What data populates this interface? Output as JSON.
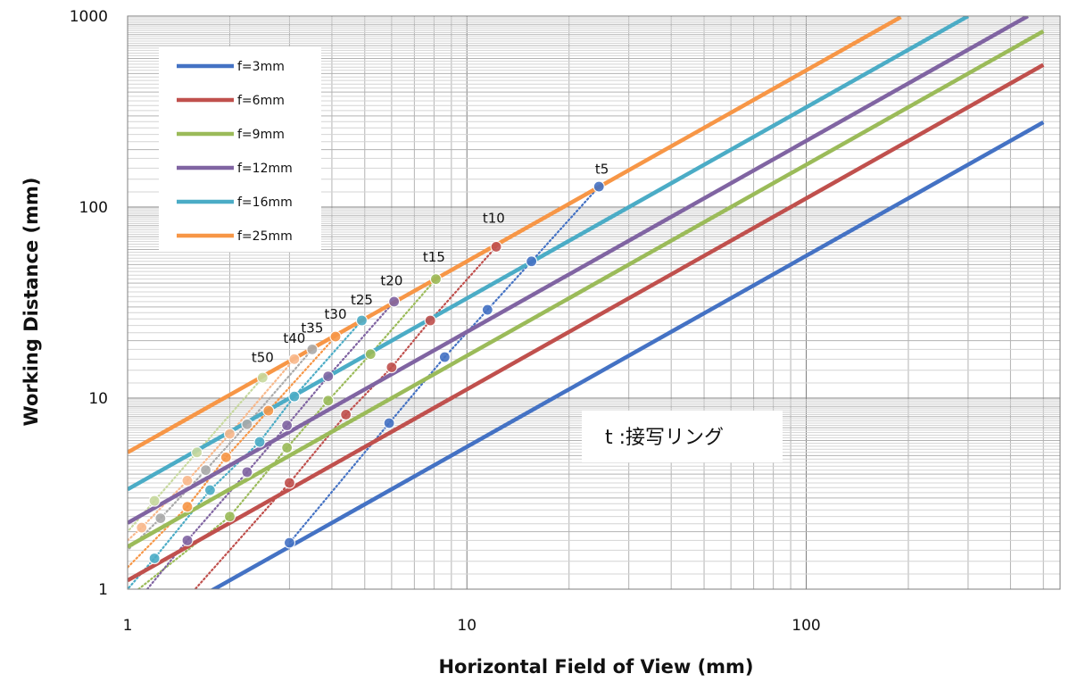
{
  "chart_data": {
    "type": "line",
    "xlabel": "Horizontal Field of View (mm)",
    "ylabel": "Working Distance (mm)",
    "x_scale": "log",
    "y_scale": "log",
    "xlim": [
      1,
      560
    ],
    "ylim": [
      1,
      1000
    ],
    "x_ticks": [
      {
        "value": 1,
        "label": "1"
      },
      {
        "value": 10,
        "label": "10"
      },
      {
        "value": 100,
        "label": "100"
      }
    ],
    "y_ticks": [
      {
        "value": 1,
        "label": "1"
      },
      {
        "value": 10,
        "label": "10"
      },
      {
        "value": 100,
        "label": "100"
      },
      {
        "value": 1000,
        "label": "1000"
      }
    ],
    "grid": true,
    "legend_position": "top-left",
    "series": [
      {
        "name": "f=3mm",
        "color": "#4472c4",
        "slope": 0.556,
        "x_range": [
          1.5,
          500
        ]
      },
      {
        "name": "f=6mm",
        "color": "#c0504d",
        "slope": 1.111,
        "x_range": [
          1,
          500
        ]
      },
      {
        "name": "f=9mm",
        "color": "#9bbb59",
        "slope": 1.667,
        "x_range": [
          1,
          500
        ]
      },
      {
        "name": "f=12mm",
        "color": "#8064a2",
        "slope": 2.222,
        "x_range": [
          1,
          450
        ]
      },
      {
        "name": "f=16mm",
        "color": "#4bacc6",
        "slope": 3.33,
        "x_range": [
          1,
          300
        ]
      },
      {
        "name": "f=25mm",
        "color": "#f79646",
        "slope": 5.2,
        "x_range": [
          1,
          190
        ]
      }
    ],
    "extension_rings": [
      {
        "label": "t5",
        "color": "#4472c4",
        "label_x": 25,
        "label_y": 150,
        "points": [
          [
            24.5,
            128
          ],
          [
            15.5,
            52
          ],
          [
            11.5,
            29
          ],
          [
            8.6,
            16.4
          ],
          [
            5.9,
            7.4
          ],
          [
            3.0,
            1.75
          ]
        ]
      },
      {
        "label": "t10",
        "color": "#c0504d",
        "label_x": 12,
        "label_y": 83,
        "points": [
          [
            12.2,
            62
          ],
          [
            7.8,
            25.5
          ],
          [
            6.0,
            14.5
          ],
          [
            4.4,
            8.2
          ],
          [
            3.0,
            3.6
          ],
          [
            1.5,
            0.9
          ]
        ]
      },
      {
        "label": "t15",
        "color": "#9bbb59",
        "label_x": 8,
        "label_y": 52,
        "points": [
          [
            8.1,
            42
          ],
          [
            5.2,
            17
          ],
          [
            3.9,
            9.7
          ],
          [
            2.95,
            5.5
          ],
          [
            2.0,
            2.4
          ],
          [
            1.0,
            0.9
          ]
        ]
      },
      {
        "label": "t20",
        "color": "#8064a2",
        "label_x": 6,
        "label_y": 39,
        "points": [
          [
            6.1,
            32
          ],
          [
            3.9,
            13
          ],
          [
            2.95,
            7.2
          ],
          [
            2.25,
            4.1
          ],
          [
            1.5,
            1.8
          ],
          [
            1.0,
            0.75
          ]
        ]
      },
      {
        "label": "t25",
        "color": "#4bacc6",
        "label_x": 4.9,
        "label_y": 31,
        "points": [
          [
            4.9,
            25.5
          ],
          [
            3.1,
            10.2
          ],
          [
            2.45,
            5.9
          ],
          [
            1.75,
            3.3
          ],
          [
            1.2,
            1.45
          ],
          [
            1.0,
            1.0
          ]
        ]
      },
      {
        "label": "t30",
        "color": "#f79646",
        "label_x": 4.1,
        "label_y": 26,
        "points": [
          [
            4.1,
            21
          ],
          [
            2.6,
            8.6
          ],
          [
            1.95,
            4.9
          ],
          [
            1.5,
            2.7
          ],
          [
            1.0,
            1.3
          ]
        ]
      },
      {
        "label": "t35",
        "color": "#aaaaaa",
        "label_x": 3.5,
        "label_y": 22,
        "points": [
          [
            3.5,
            18
          ],
          [
            2.25,
            7.3
          ],
          [
            1.7,
            4.2
          ],
          [
            1.25,
            2.35
          ],
          [
            1.0,
            1.6
          ]
        ]
      },
      {
        "label": "t40",
        "color": "#f9b98c",
        "label_x": 3.1,
        "label_y": 19.5,
        "points": [
          [
            3.1,
            16
          ],
          [
            2.0,
            6.5
          ],
          [
            1.5,
            3.7
          ],
          [
            1.1,
            2.1
          ],
          [
            1.0,
            1.8
          ]
        ]
      },
      {
        "label": "t50",
        "color": "#c7d99e",
        "label_x": 2.5,
        "label_y": 15.5,
        "points": [
          [
            2.5,
            12.8
          ],
          [
            1.6,
            5.2
          ],
          [
            1.2,
            2.9
          ],
          [
            1.0,
            2.0
          ]
        ]
      }
    ],
    "annotation": "t :接写リング"
  }
}
